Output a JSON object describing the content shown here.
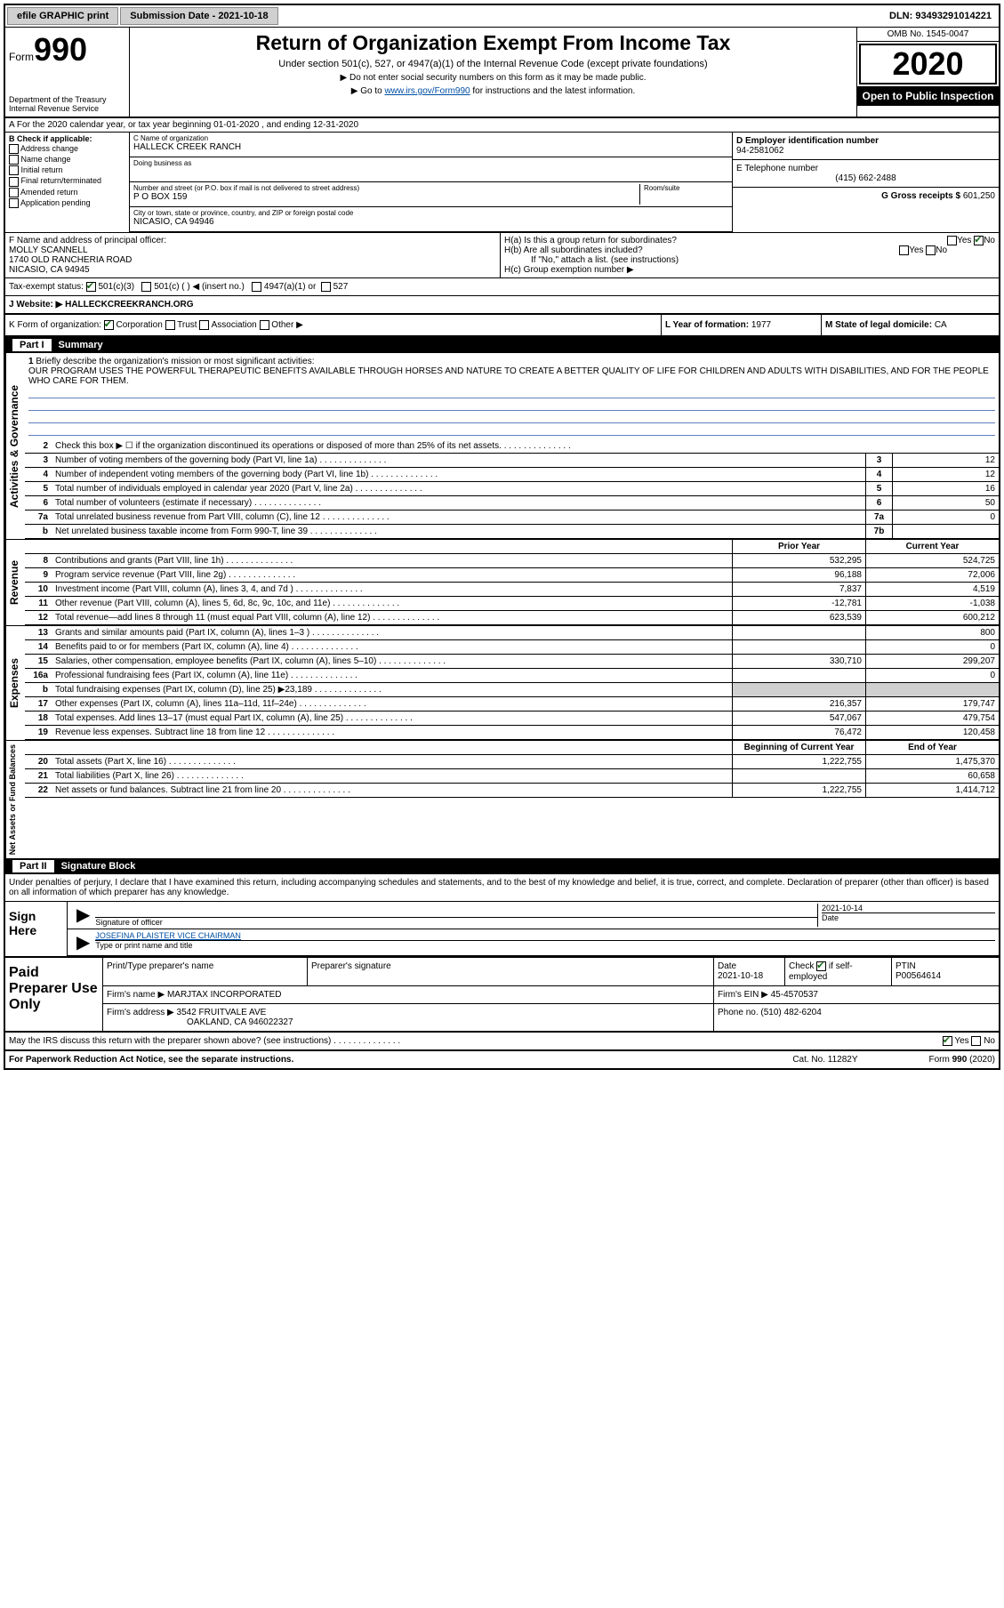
{
  "topbar": {
    "efile": "efile GRAPHIC print",
    "submission_label": "Submission Date - 2021-10-18",
    "dln": "DLN: 93493291014221"
  },
  "header": {
    "form_label": "Form",
    "form_number": "990",
    "dept": "Department of the Treasury\nInternal Revenue Service",
    "title": "Return of Organization Exempt From Income Tax",
    "subtitle": "Under section 501(c), 527, or 4947(a)(1) of the Internal Revenue Code (except private foundations)",
    "instr1": "▶ Do not enter social security numbers on this form as it may be made public.",
    "instr2_pre": "▶ Go to ",
    "instr2_link": "www.irs.gov/Form990",
    "instr2_post": " for instructions and the latest information.",
    "omb": "OMB No. 1545-0047",
    "year": "2020",
    "open": "Open to Public Inspection"
  },
  "row_a": "A For the 2020 calendar year, or tax year beginning 01-01-2020   , and ending 12-31-2020",
  "section_b": {
    "label": "B Check if applicable:",
    "opts": [
      "Address change",
      "Name change",
      "Initial return",
      "Final return/terminated",
      "Amended return",
      "Application pending"
    ]
  },
  "section_c": {
    "name_lbl": "C Name of organization",
    "name": "HALLECK CREEK RANCH",
    "dba_lbl": "Doing business as",
    "addr_lbl": "Number and street (or P.O. box if mail is not delivered to street address)",
    "room_lbl": "Room/suite",
    "addr": "P O BOX 159",
    "city_lbl": "City or town, state or province, country, and ZIP or foreign postal code",
    "city": "NICASIO, CA  94946"
  },
  "section_d": {
    "lbl": "D Employer identification number",
    "val": "94-2581062"
  },
  "section_e": {
    "lbl": "E Telephone number",
    "val": "(415) 662-2488"
  },
  "section_g": {
    "lbl": "G Gross receipts $",
    "val": "601,250"
  },
  "section_f": {
    "lbl": "F Name and address of principal officer:",
    "name": "MOLLY SCANNELL",
    "addr1": "1740 OLD RANCHERIA ROAD",
    "addr2": "NICASIO, CA  94945"
  },
  "section_h": {
    "ha": "H(a)  Is this a group return for subordinates?",
    "hb": "H(b)  Are all subordinates included?",
    "hb_note": "If \"No,\" attach a list. (see instructions)",
    "hc": "H(c)  Group exemption number ▶",
    "yes": "Yes",
    "no": "No"
  },
  "tax_status": {
    "lbl": "Tax-exempt status:",
    "o1": "501(c)(3)",
    "o2": "501(c) (  ) ◀ (insert no.)",
    "o3": "4947(a)(1) or",
    "o4": "527"
  },
  "website": {
    "lbl": "J   Website: ▶",
    "val": "HALLECKCREEKRANCH.ORG"
  },
  "row_k": {
    "lbl": "K Form of organization:",
    "opts": [
      "Corporation",
      "Trust",
      "Association",
      "Other ▶"
    ],
    "l_lbl": "L Year of formation:",
    "l_val": "1977",
    "m_lbl": "M State of legal domicile:",
    "m_val": "CA"
  },
  "part1": {
    "num": "Part I",
    "title": "Summary"
  },
  "mission": {
    "num": "1",
    "lbl": "Briefly describe the organization's mission or most significant activities:",
    "text": "OUR PROGRAM USES THE POWERFUL THERAPEUTIC BENEFITS AVAILABLE THROUGH HORSES AND NATURE TO CREATE A BETTER QUALITY OF LIFE FOR CHILDREN AND ADULTS WITH DISABILITIES, AND FOR THE PEOPLE WHO CARE FOR THEM."
  },
  "gov_lines": [
    {
      "n": "2",
      "d": "Check this box ▶ ☐ if the organization discontinued its operations or disposed of more than 25% of its net assets.",
      "box": "",
      "v": ""
    },
    {
      "n": "3",
      "d": "Number of voting members of the governing body (Part VI, line 1a)",
      "box": "3",
      "v": "12"
    },
    {
      "n": "4",
      "d": "Number of independent voting members of the governing body (Part VI, line 1b)",
      "box": "4",
      "v": "12"
    },
    {
      "n": "5",
      "d": "Total number of individuals employed in calendar year 2020 (Part V, line 2a)",
      "box": "5",
      "v": "16"
    },
    {
      "n": "6",
      "d": "Total number of volunteers (estimate if necessary)",
      "box": "6",
      "v": "50"
    },
    {
      "n": "7a",
      "d": "Total unrelated business revenue from Part VIII, column (C), line 12",
      "box": "7a",
      "v": "0"
    },
    {
      "n": "b",
      "d": "Net unrelated business taxable income from Form 990-T, line 39",
      "box": "7b",
      "v": ""
    }
  ],
  "col_hdr": {
    "prior": "Prior Year",
    "current": "Current Year"
  },
  "rev_lines": [
    {
      "n": "8",
      "d": "Contributions and grants (Part VIII, line 1h)",
      "p": "532,295",
      "c": "524,725"
    },
    {
      "n": "9",
      "d": "Program service revenue (Part VIII, line 2g)",
      "p": "96,188",
      "c": "72,006"
    },
    {
      "n": "10",
      "d": "Investment income (Part VIII, column (A), lines 3, 4, and 7d )",
      "p": "7,837",
      "c": "4,519"
    },
    {
      "n": "11",
      "d": "Other revenue (Part VIII, column (A), lines 5, 6d, 8c, 9c, 10c, and 11e)",
      "p": "-12,781",
      "c": "-1,038"
    },
    {
      "n": "12",
      "d": "Total revenue—add lines 8 through 11 (must equal Part VIII, column (A), line 12)",
      "p": "623,539",
      "c": "600,212"
    }
  ],
  "exp_lines": [
    {
      "n": "13",
      "d": "Grants and similar amounts paid (Part IX, column (A), lines 1–3 )",
      "p": "",
      "c": "800"
    },
    {
      "n": "14",
      "d": "Benefits paid to or for members (Part IX, column (A), line 4)",
      "p": "",
      "c": "0"
    },
    {
      "n": "15",
      "d": "Salaries, other compensation, employee benefits (Part IX, column (A), lines 5–10)",
      "p": "330,710",
      "c": "299,207"
    },
    {
      "n": "16a",
      "d": "Professional fundraising fees (Part IX, column (A), line 11e)",
      "p": "",
      "c": "0"
    },
    {
      "n": "b",
      "d": "Total fundraising expenses (Part IX, column (D), line 25) ▶23,189",
      "p": "shade",
      "c": "shade"
    },
    {
      "n": "17",
      "d": "Other expenses (Part IX, column (A), lines 11a–11d, 11f–24e)",
      "p": "216,357",
      "c": "179,747"
    },
    {
      "n": "18",
      "d": "Total expenses. Add lines 13–17 (must equal Part IX, column (A), line 25)",
      "p": "547,067",
      "c": "479,754"
    },
    {
      "n": "19",
      "d": "Revenue less expenses. Subtract line 18 from line 12",
      "p": "76,472",
      "c": "120,458"
    }
  ],
  "net_hdr": {
    "begin": "Beginning of Current Year",
    "end": "End of Year"
  },
  "net_lines": [
    {
      "n": "20",
      "d": "Total assets (Part X, line 16)",
      "p": "1,222,755",
      "c": "1,475,370"
    },
    {
      "n": "21",
      "d": "Total liabilities (Part X, line 26)",
      "p": "",
      "c": "60,658"
    },
    {
      "n": "22",
      "d": "Net assets or fund balances. Subtract line 21 from line 20",
      "p": "1,222,755",
      "c": "1,414,712"
    }
  ],
  "vtabs": {
    "gov": "Activities & Governance",
    "rev": "Revenue",
    "exp": "Expenses",
    "net": "Net Assets or Fund Balances"
  },
  "part2": {
    "num": "Part II",
    "title": "Signature Block"
  },
  "penalties": "Under penalties of perjury, I declare that I have examined this return, including accompanying schedules and statements, and to the best of my knowledge and belief, it is true, correct, and complete. Declaration of preparer (other than officer) is based on all information of which preparer has any knowledge.",
  "sign": {
    "here": "Sign Here",
    "sig_lbl": "Signature of officer",
    "date_lbl": "Date",
    "date": "2021-10-14",
    "name": "JOSEFINA PLAISTER  VICE CHAIRMAN",
    "name_lbl": "Type or print name and title"
  },
  "prep": {
    "title": "Paid Preparer Use Only",
    "h1": "Print/Type preparer's name",
    "h2": "Preparer's signature",
    "h3": "Date",
    "h4": "Check",
    "h4b": "if self-employed",
    "h5": "PTIN",
    "date": "2021-10-18",
    "ptin": "P00564614",
    "firm_lbl": "Firm's name   ▶",
    "firm": "MARJTAX INCORPORATED",
    "ein_lbl": "Firm's EIN ▶",
    "ein": "45-4570537",
    "addr_lbl": "Firm's address ▶",
    "addr1": "3542 FRUITVALE AVE",
    "addr2": "OAKLAND, CA  946022327",
    "phone_lbl": "Phone no.",
    "phone": "(510) 482-6204"
  },
  "irs_discuss": "May the IRS discuss this return with the preparer shown above? (see instructions)",
  "footer": {
    "left": "For Paperwork Reduction Act Notice, see the separate instructions.",
    "mid": "Cat. No. 11282Y",
    "right": "Form 990 (2020)"
  }
}
